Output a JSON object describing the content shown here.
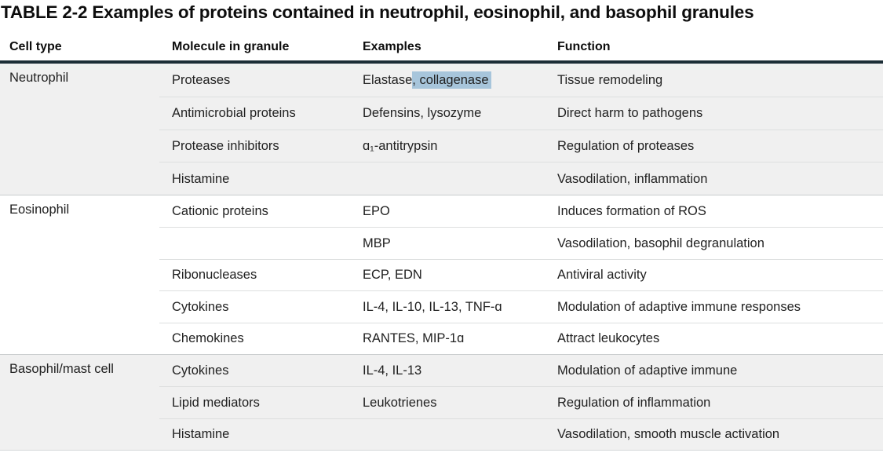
{
  "title": "TABLE 2-2 Examples of proteins contained in neutrophil, eosinophil, and basophil granules",
  "columns": [
    "Cell type",
    "Molecule in granule",
    "Examples",
    "Function"
  ],
  "colors": {
    "header_rule": "#1c2d36",
    "group_shaded_bg": "#f0f0f0",
    "highlight": "#a7c5db",
    "inner_border": "#dddfdf",
    "group_border": "#c8cccd",
    "text": "#212121"
  },
  "groups": [
    {
      "cell_type": "Neutrophil",
      "rows": [
        {
          "molecule": "Proteases",
          "examples_pre": "Elastase",
          "examples_highlighted": ", collagenase",
          "function": "Tissue remodeling"
        },
        {
          "molecule": "Antimicrobial proteins",
          "examples": "Defensins, lysozyme",
          "function": "Direct harm to pathogens"
        },
        {
          "molecule": "Protease inhibitors",
          "examples": "ɑ₁-antitrypsin",
          "function": "Regulation of proteases"
        },
        {
          "molecule": "Histamine",
          "examples": "",
          "function": "Vasodilation, inflammation"
        }
      ]
    },
    {
      "cell_type": "Eosinophil",
      "rows": [
        {
          "molecule": "Cationic proteins",
          "examples": "EPO",
          "function": "Induces formation of ROS"
        },
        {
          "molecule": "",
          "examples": "MBP",
          "function": "Vasodilation, basophil degranulation"
        },
        {
          "molecule": "Ribonucleases",
          "examples": "ECP, EDN",
          "function": "Antiviral activity"
        },
        {
          "molecule": "Cytokines",
          "examples": "IL-4, IL-10, IL-13, TNF-ɑ",
          "function": "Modulation of adaptive immune responses"
        },
        {
          "molecule": "Chemokines",
          "examples": "RANTES, MIP-1ɑ",
          "function": "Attract leukocytes"
        }
      ]
    },
    {
      "cell_type": "Basophil/mast cell",
      "rows": [
        {
          "molecule": "Cytokines",
          "examples": "IL-4, IL-13",
          "function": "Modulation of adaptive immune"
        },
        {
          "molecule": "Lipid mediators",
          "examples": "Leukotrienes",
          "function": "Regulation of inflammation"
        },
        {
          "molecule": "Histamine",
          "examples": "",
          "function": "Vasodilation, smooth muscle activation"
        }
      ]
    }
  ]
}
